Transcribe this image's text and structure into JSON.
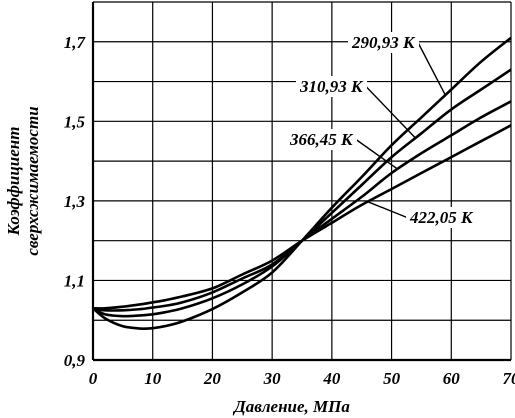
{
  "chart_data": {
    "type": "line",
    "xlabel": "Давление, МПа",
    "ylabel_lines": [
      "Коэффициент",
      "сверхсжимаемости"
    ],
    "xlim": [
      0,
      70
    ],
    "ylim": [
      0.9,
      1.8
    ],
    "x_ticks": [
      0,
      10,
      20,
      30,
      40,
      50,
      60,
      70
    ],
    "x_tick_labels": [
      "0",
      "10",
      "20",
      "30",
      "40",
      "50",
      "60",
      "70"
    ],
    "y_ticks": [
      0.9,
      1.1,
      1.3,
      1.5,
      1.7
    ],
    "y_tick_labels": [
      "0,9",
      "1,1",
      "1,3",
      "1,5",
      "1,7"
    ],
    "grid": true,
    "line_color": "#000000",
    "series": [
      {
        "name": "290,93 К",
        "x": [
          0,
          2,
          5,
          8,
          10,
          12,
          15,
          20,
          25,
          30,
          35,
          40,
          45,
          50,
          55,
          60,
          65,
          70
        ],
        "y": [
          1.03,
          1.005,
          0.985,
          0.979,
          0.98,
          0.985,
          0.997,
          1.028,
          1.07,
          1.12,
          1.2,
          1.283,
          1.36,
          1.44,
          1.51,
          1.58,
          1.65,
          1.71
        ]
      },
      {
        "name": "310,93 К",
        "x": [
          0,
          2,
          5,
          8,
          10,
          12,
          15,
          20,
          25,
          30,
          35,
          40,
          45,
          50,
          55,
          60,
          65,
          70
        ],
        "y": [
          1.03,
          1.015,
          1.01,
          1.012,
          1.015,
          1.02,
          1.03,
          1.055,
          1.09,
          1.135,
          1.2,
          1.27,
          1.34,
          1.41,
          1.47,
          1.53,
          1.58,
          1.63
        ]
      },
      {
        "name": "366,45 К",
        "x": [
          0,
          2,
          5,
          8,
          10,
          12,
          15,
          20,
          25,
          30,
          35,
          40,
          45,
          50,
          55,
          60,
          65,
          70
        ],
        "y": [
          1.03,
          1.025,
          1.025,
          1.028,
          1.032,
          1.036,
          1.045,
          1.07,
          1.105,
          1.14,
          1.2,
          1.255,
          1.31,
          1.37,
          1.42,
          1.465,
          1.51,
          1.55
        ]
      },
      {
        "name": "422,05 К",
        "x": [
          0,
          2,
          5,
          8,
          10,
          12,
          15,
          20,
          25,
          30,
          35,
          40,
          45,
          50,
          55,
          60,
          65,
          70
        ],
        "y": [
          1.03,
          1.03,
          1.034,
          1.04,
          1.045,
          1.05,
          1.06,
          1.08,
          1.115,
          1.15,
          1.2,
          1.245,
          1.29,
          1.33,
          1.37,
          1.41,
          1.45,
          1.49
        ]
      }
    ],
    "annotations": [
      {
        "text": "290,93 К",
        "series": 0,
        "at_x": 59
      },
      {
        "text": "310,93 К",
        "series": 1,
        "at_x": 54
      },
      {
        "text": "366,45 К",
        "series": 2,
        "at_x": 51
      },
      {
        "text": "422,05 К",
        "series": 3,
        "at_x": 46
      }
    ]
  }
}
